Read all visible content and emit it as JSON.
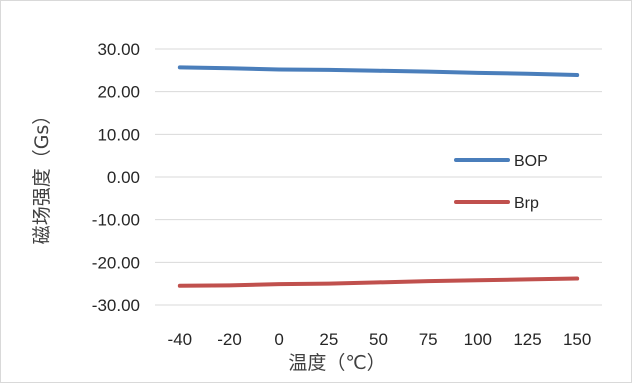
{
  "chart_data": {
    "type": "line",
    "title": "",
    "xlabel": "温度（℃）",
    "ylabel": "磁场强度（Gs）",
    "categories": [
      "-40",
      "-20",
      "0",
      "25",
      "50",
      "75",
      "100",
      "125",
      "150"
    ],
    "yticks": [
      "30.00",
      "20.00",
      "10.00",
      "0.00",
      "-10.00",
      "-20.00",
      "-30.00"
    ],
    "ylim": [
      -30,
      30
    ],
    "grid": true,
    "legend": "right",
    "series": [
      {
        "name": "BOP",
        "color": "#4a7ebb",
        "values": [
          25.7,
          25.5,
          25.2,
          25.1,
          24.9,
          24.7,
          24.4,
          24.2,
          23.9
        ]
      },
      {
        "name": "Brp",
        "color": "#c0504d",
        "values": [
          -25.5,
          -25.4,
          -25.1,
          -25.0,
          -24.7,
          -24.4,
          -24.2,
          -24.0,
          -23.8
        ]
      }
    ]
  }
}
